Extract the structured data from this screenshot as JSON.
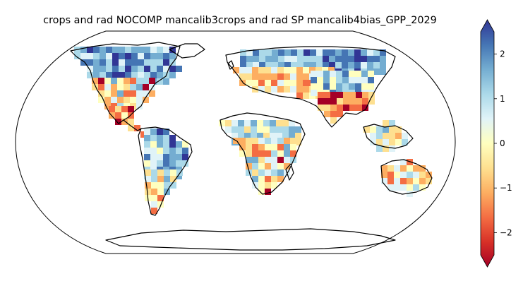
{
  "title": "crops and rad NOCOMP mancalib3crops and rad SP mancalib4bias_GPP_2029",
  "colorbar": {
    "ticks": [
      "2",
      "1",
      "0",
      "−2"
    ],
    "tick_values": [
      2,
      1,
      0,
      -2
    ],
    "extra_tick": {
      "label": "−1",
      "value": -1
    },
    "range": [
      -2.5,
      2.5
    ],
    "extend": "both",
    "colormap": "RdYlBu"
  },
  "colors": {
    "strong_negative": "#a50026",
    "negative": "#f46d43",
    "weak_negative": "#fee090",
    "neutral": "#ffffbf",
    "weak_positive": "#e0f3f8",
    "positive": "#74add1",
    "strong_positive": "#313695"
  },
  "map": {
    "projection": "Robinson",
    "variable": "GPP bias",
    "year": "2029"
  }
}
